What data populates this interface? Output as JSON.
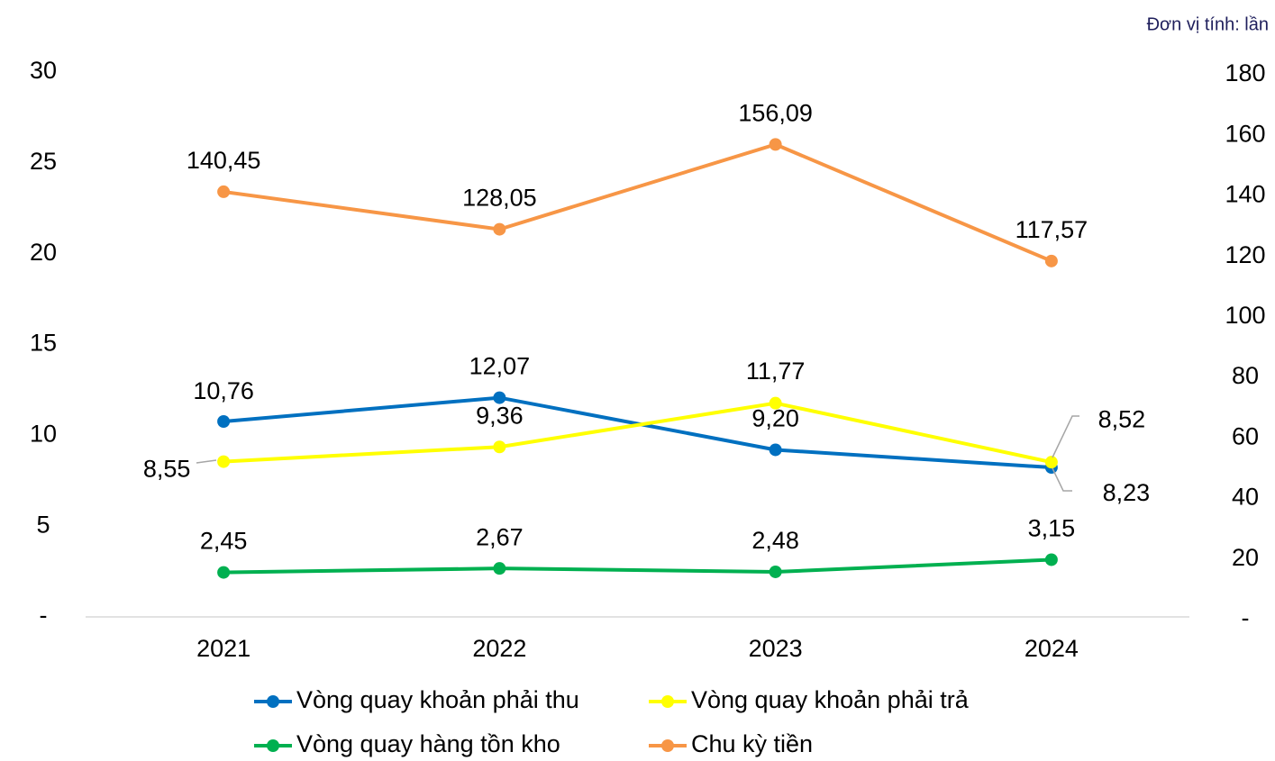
{
  "chart_data": {
    "type": "line",
    "unit_note": "Đơn vị tính: lần",
    "categories": [
      "2021",
      "2022",
      "2023",
      "2024"
    ],
    "series": [
      {
        "name": "Vòng quay khoản phải thu",
        "color": "#0070c0",
        "values": [
          10.76,
          12.07,
          9.2,
          8.23
        ],
        "value_labels": [
          "10,76",
          "12,07",
          "9,20",
          "8,23"
        ]
      },
      {
        "name": "Vòng quay khoản phải trả",
        "color": "#ffff00",
        "values": [
          8.55,
          9.36,
          11.77,
          8.52
        ],
        "value_labels": [
          "8,55",
          "9,36",
          "11,77",
          "8,52"
        ]
      },
      {
        "name": "Vòng quay hàng tồn kho",
        "color": "#00b050",
        "values": [
          2.45,
          2.67,
          2.48,
          3.15
        ],
        "value_labels": [
          "2,45",
          "2,67",
          "2,48",
          "3,15"
        ]
      },
      {
        "name": "Chu kỳ tiền",
        "color": "#f79646",
        "axis": "y2",
        "values": [
          140.45,
          128.05,
          156.09,
          117.57
        ],
        "value_labels": [
          "140,45",
          "128,05",
          "156,09",
          "117,57"
        ]
      }
    ],
    "ylim": [
      0,
      30
    ],
    "yticks": [
      {
        "value": 0,
        "label": "-"
      },
      5,
      10,
      15,
      20,
      25,
      30
    ],
    "y2lim": [
      0,
      180
    ],
    "y2ticks": [
      {
        "value": 0,
        "label": "-"
      },
      20,
      40,
      60,
      80,
      100,
      120,
      140,
      160,
      180
    ],
    "legend": "bottom"
  }
}
